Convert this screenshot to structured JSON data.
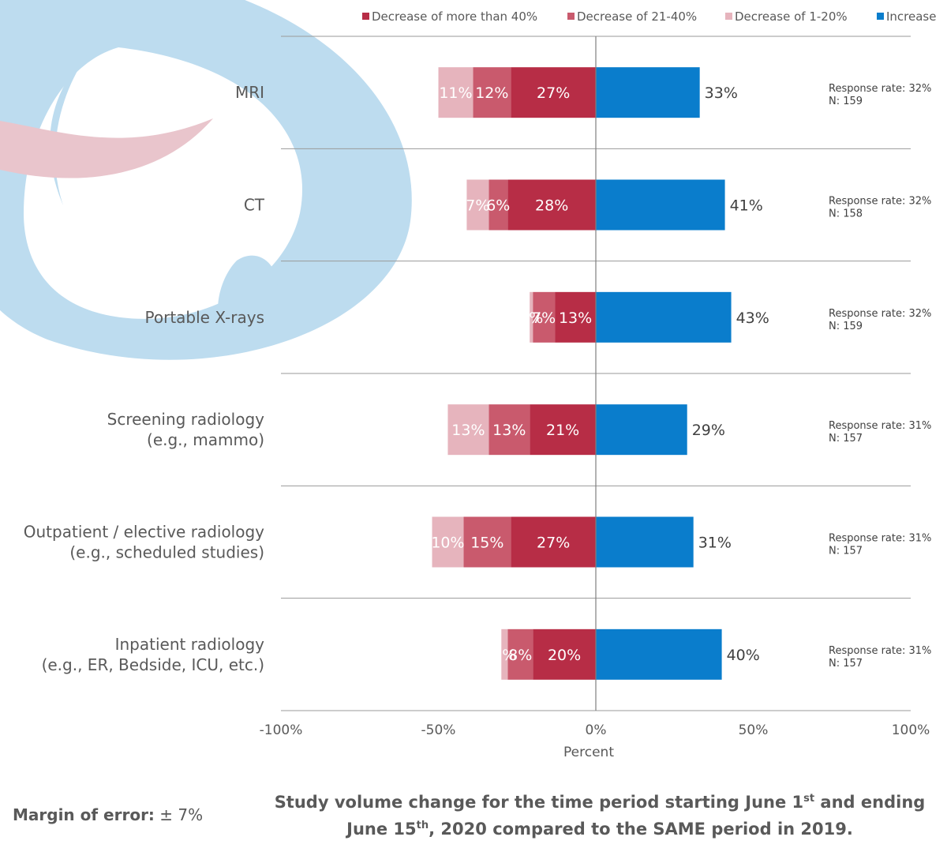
{
  "chart_data": {
    "type": "bar",
    "stacked": true,
    "orientation": "horizontal",
    "categories": [
      [
        "MRI"
      ],
      [
        "CT"
      ],
      [
        "Portable X-rays"
      ],
      [
        "Screening radiology",
        "(e.g., mammo)"
      ],
      [
        "Outpatient / elective radiology",
        "(e.g., scheduled studies)"
      ],
      [
        "Inpatient radiology",
        "(e.g., ER, Bedside, ICU, etc.)"
      ]
    ],
    "series": [
      {
        "name": "Decrease of more than 40%",
        "color": "#B72D46",
        "side": "negative",
        "values": [
          27,
          28,
          13,
          21,
          27,
          20
        ]
      },
      {
        "name": "Decrease of 21-40%",
        "color": "#C95A6D",
        "side": "negative",
        "values": [
          12,
          6,
          7,
          13,
          15,
          8
        ]
      },
      {
        "name": "Decrease of 1-20%",
        "color": "#E6B4BD",
        "side": "negative",
        "values": [
          11,
          7,
          1,
          13,
          10,
          2
        ]
      },
      {
        "name": "Increase",
        "color": "#0A7DCC",
        "side": "positive",
        "values": [
          33,
          41,
          43,
          29,
          31,
          40
        ]
      }
    ],
    "annotations": [
      {
        "response_rate": "Response rate: 32%",
        "n": "N: 159"
      },
      {
        "response_rate": "Response rate: 32%",
        "n": "N: 158"
      },
      {
        "response_rate": "Response rate: 32%",
        "n": "N: 159"
      },
      {
        "response_rate": "Response rate: 31%",
        "n": "N: 157"
      },
      {
        "response_rate": "Response rate: 31%",
        "n": "N: 157"
      },
      {
        "response_rate": "Response rate: 31%",
        "n": "N: 157"
      }
    ],
    "xlim": [
      -100,
      100
    ],
    "xticks": [
      -100,
      -50,
      0,
      50,
      100
    ],
    "xtick_labels": [
      "-100%",
      "-50%",
      "0%",
      "50%",
      "100%"
    ],
    "xlabel": "Percent",
    "legend_position": "top",
    "grid": false
  },
  "footer": {
    "margin_label": "Margin of error:",
    "margin_value": "± 7%",
    "title_part1": "Study volume change for the time period starting June 1",
    "title_sup1": "st",
    "title_part2": " and ending June 15",
    "title_sup2": "th",
    "title_part3": ", 2020 compared to the SAME period in 2019."
  }
}
